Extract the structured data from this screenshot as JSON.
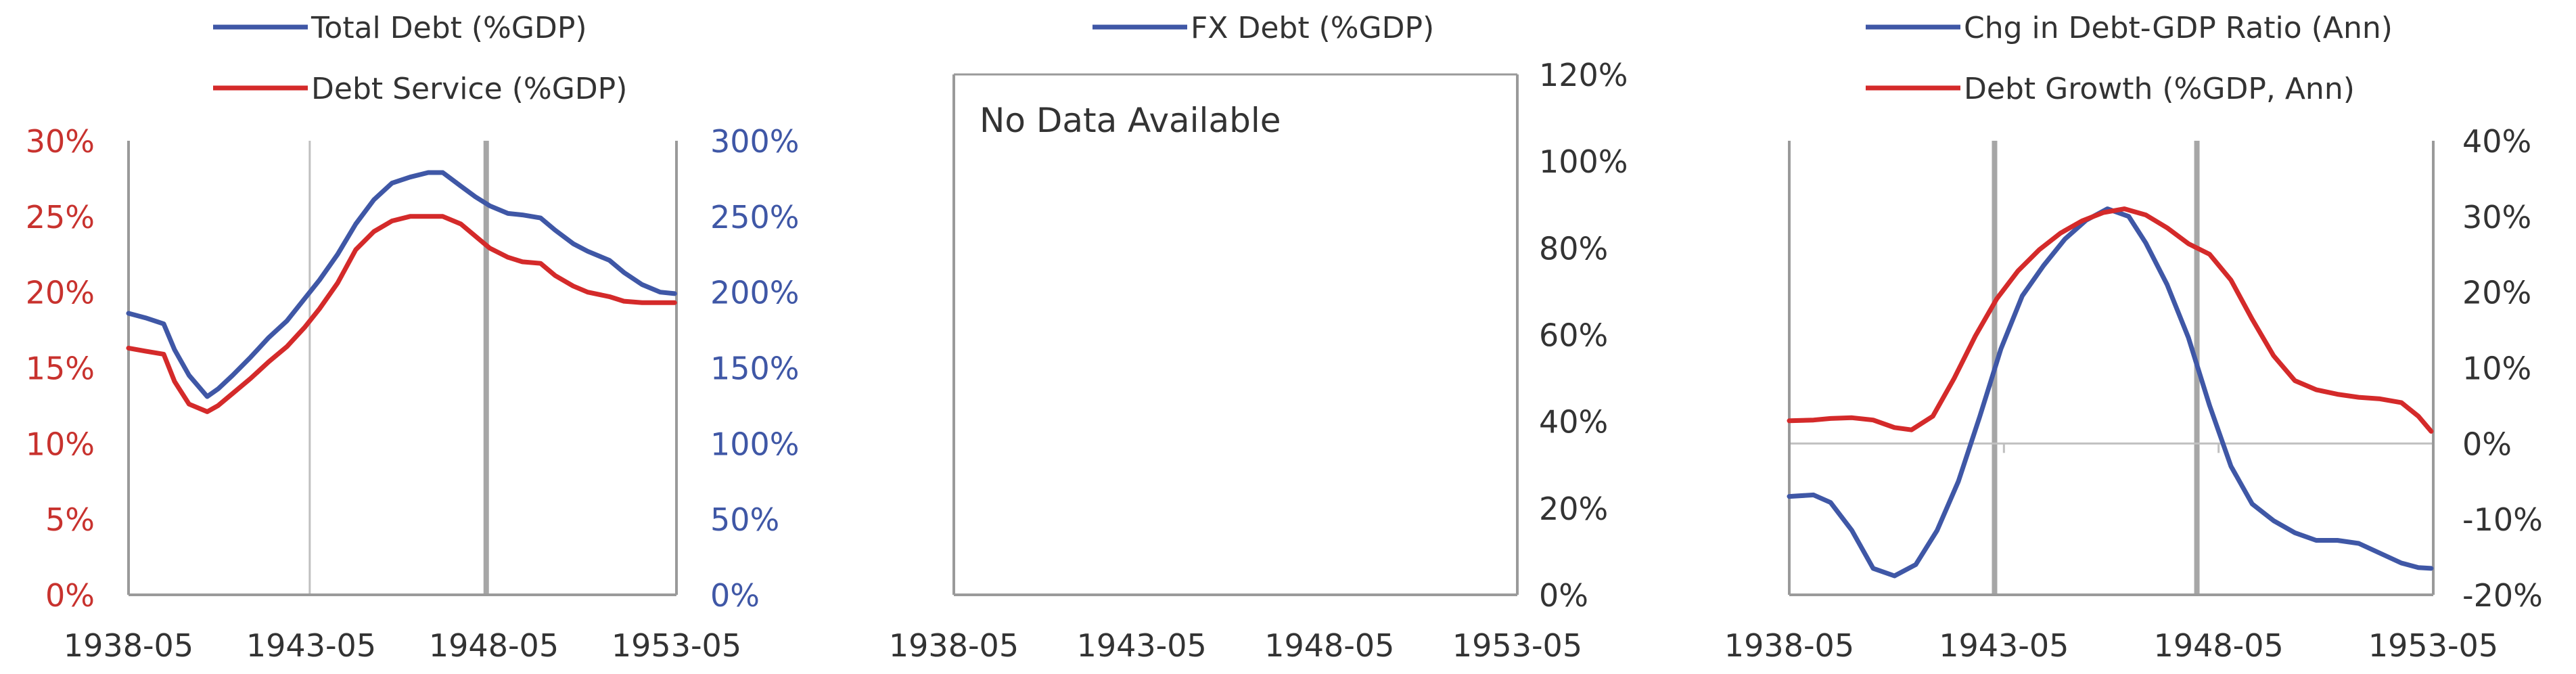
{
  "colors": {
    "blue": "#3f57a6",
    "red": "#d42a2a",
    "text": "#333333",
    "red_text": "#c8322e",
    "blue_text": "#3f57a6",
    "axis": "#9a9a9a",
    "grid": "#c0c0c0",
    "gridband": "#a6a6a6"
  },
  "chart_data": [
    {
      "type": "line",
      "title": "",
      "x_tick_labels": [
        "1938-05",
        "1943-05",
        "1948-05",
        "1953-05"
      ],
      "xlim": [
        1938.33,
        1953.45
      ],
      "legend_position": "top",
      "left_axis": {
        "ylim": [
          0,
          30
        ],
        "tick_labels": [
          "0%",
          "5%",
          "10%",
          "15%",
          "20%",
          "25%",
          "30%"
        ],
        "color": "red"
      },
      "right_axis": {
        "ylim": [
          0,
          300
        ],
        "tick_labels": [
          "0%",
          "50%",
          "100%",
          "150%",
          "200%",
          "250%",
          "300%"
        ],
        "color": "blue"
      },
      "vertical_markers": [
        {
          "x": 1943.33,
          "style": "thin"
        },
        {
          "x": 1948.2,
          "style": "thick"
        }
      ],
      "series": [
        {
          "name": "Total Debt (%GDP)",
          "axis": "right",
          "color": "blue",
          "x": [
            1938.33,
            1938.8,
            1939.3,
            1939.6,
            1940.0,
            1940.5,
            1940.8,
            1941.2,
            1941.7,
            1942.2,
            1942.7,
            1943.2,
            1943.6,
            1944.1,
            1944.6,
            1945.1,
            1945.6,
            1946.1,
            1946.6,
            1947.0,
            1947.5,
            1947.9,
            1948.3,
            1948.8,
            1949.2,
            1949.7,
            1950.1,
            1950.6,
            1951.0,
            1951.6,
            1952.0,
            1952.5,
            1953.0,
            1953.4
          ],
          "y": [
            186,
            183,
            179,
            162,
            145,
            131,
            136,
            145,
            157,
            170,
            181,
            196,
            208,
            225,
            245,
            261,
            272,
            276,
            279,
            279,
            270,
            263,
            257,
            252,
            251,
            249,
            241,
            232,
            227,
            221,
            213,
            205,
            200,
            199
          ]
        },
        {
          "name": "Debt Service (%GDP)",
          "axis": "left",
          "color": "red",
          "x": [
            1938.33,
            1938.8,
            1939.3,
            1939.6,
            1940.0,
            1940.5,
            1940.8,
            1941.2,
            1941.7,
            1942.2,
            1942.7,
            1943.2,
            1943.6,
            1944.1,
            1944.6,
            1945.1,
            1945.6,
            1946.1,
            1946.6,
            1947.0,
            1947.5,
            1947.9,
            1948.3,
            1948.8,
            1949.2,
            1949.7,
            1950.1,
            1950.6,
            1951.0,
            1951.6,
            1952.0,
            1952.5,
            1953.0,
            1953.4
          ],
          "y": [
            16.3,
            16.1,
            15.9,
            14.1,
            12.6,
            12.1,
            12.5,
            13.3,
            14.3,
            15.4,
            16.4,
            17.7,
            18.9,
            20.6,
            22.8,
            24.0,
            24.7,
            25.0,
            25.0,
            25.0,
            24.5,
            23.7,
            22.9,
            22.3,
            22.0,
            21.9,
            21.1,
            20.4,
            20.0,
            19.7,
            19.4,
            19.3,
            19.3,
            19.3
          ]
        }
      ]
    },
    {
      "type": "line",
      "title": "",
      "x_tick_labels": [
        "1938-05",
        "1943-05",
        "1948-05",
        "1953-05"
      ],
      "xlim": [
        1938.33,
        1953.45
      ],
      "legend_position": "top",
      "right_axis": {
        "ylim": [
          0,
          120
        ],
        "tick_labels": [
          "0%",
          "20%",
          "40%",
          "60%",
          "80%",
          "100%",
          "120%"
        ],
        "color": "text"
      },
      "annotation": "No Data Available",
      "series": [
        {
          "name": "FX Debt (%GDP)",
          "axis": "right",
          "color": "blue",
          "x": [],
          "y": []
        }
      ]
    },
    {
      "type": "line",
      "title": "",
      "x_tick_labels": [
        "1938-05",
        "1943-05",
        "1948-05",
        "1953-05"
      ],
      "xlim": [
        1938.33,
        1953.45
      ],
      "legend_position": "top",
      "right_axis": {
        "ylim": [
          -20,
          40
        ],
        "tick_labels": [
          "-20%",
          "-10%",
          "0%",
          "10%",
          "20%",
          "30%",
          "40%"
        ],
        "color": "text"
      },
      "vertical_markers": [
        {
          "x": 1943.15,
          "style": "thick"
        },
        {
          "x": 1947.9,
          "style": "thick"
        }
      ],
      "series": [
        {
          "name": "Chg in Debt-GDP Ratio (Ann)",
          "axis": "right",
          "color": "blue",
          "x": [
            1938.33,
            1938.9,
            1939.3,
            1939.8,
            1940.3,
            1940.8,
            1941.3,
            1941.8,
            1942.3,
            1942.8,
            1943.3,
            1943.8,
            1944.3,
            1944.8,
            1945.3,
            1945.8,
            1946.3,
            1946.7,
            1947.2,
            1947.7,
            1948.2,
            1948.7,
            1949.2,
            1949.7,
            1950.2,
            1950.7,
            1951.2,
            1951.7,
            1952.2,
            1952.7,
            1953.1,
            1953.4
          ],
          "y": [
            -7,
            -6.8,
            -7.8,
            -11.5,
            -16.5,
            -17.5,
            -16,
            -11.5,
            -5,
            3.5,
            12.5,
            19.5,
            23.5,
            27,
            29.5,
            31,
            30,
            26.5,
            21,
            14,
            5,
            -3,
            -8,
            -10.2,
            -11.8,
            -12.8,
            -12.8,
            -13.2,
            -14.5,
            -15.8,
            -16.4,
            -16.5
          ]
        },
        {
          "name": "Debt Growth (%GDP, Ann)",
          "axis": "right",
          "color": "red",
          "x": [
            1938.33,
            1938.9,
            1939.3,
            1939.8,
            1940.3,
            1940.8,
            1941.2,
            1941.7,
            1942.2,
            1942.7,
            1943.2,
            1943.7,
            1944.2,
            1944.7,
            1945.2,
            1945.7,
            1946.2,
            1946.7,
            1947.2,
            1947.7,
            1948.2,
            1948.7,
            1949.2,
            1949.7,
            1950.2,
            1950.7,
            1951.2,
            1951.7,
            1952.2,
            1952.7,
            1953.1,
            1953.4
          ],
          "y": [
            3,
            3.1,
            3.3,
            3.4,
            3.1,
            2.1,
            1.8,
            3.6,
            8.6,
            14.2,
            19.1,
            22.8,
            25.6,
            27.8,
            29.4,
            30.5,
            31,
            30.2,
            28.5,
            26.4,
            25,
            21.6,
            16.4,
            11.6,
            8.3,
            7.1,
            6.5,
            6.1,
            5.9,
            5.4,
            3.6,
            1.6
          ]
        }
      ]
    }
  ]
}
